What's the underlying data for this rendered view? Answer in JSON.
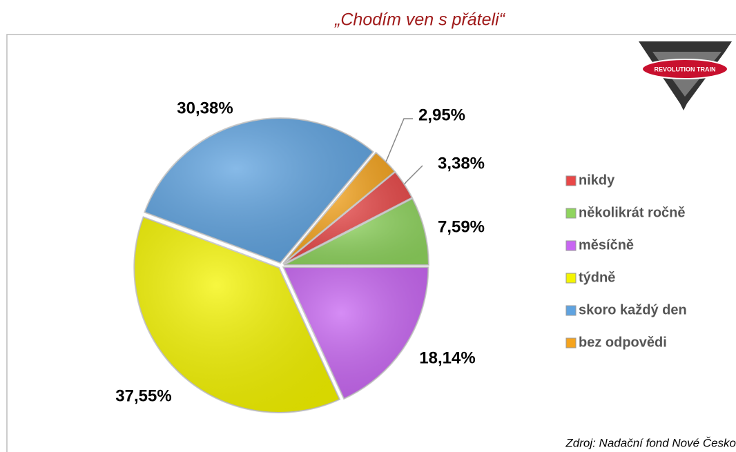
{
  "chart_data": {
    "type": "pie",
    "title": "„Chodím ven s přáteli“",
    "logo": "REVOLUTION TRAIN",
    "source": "Zdroj: Nadační fond Nové Česko",
    "categories": [
      "nikdy",
      "několikrát ročně",
      "měsíčně",
      "týdně",
      "skoro každý den",
      "bez odpovědi"
    ],
    "values": [
      3.38,
      7.59,
      18.14,
      37.55,
      30.38,
      2.95
    ],
    "value_labels": [
      "3,38%",
      "7,59%",
      "18,14%",
      "37,55%",
      "30,38%",
      "2,95%"
    ],
    "colors": [
      "#e84848",
      "#8fd45e",
      "#c866f2",
      "#f4f400",
      "#5fa3e0",
      "#f5a41e"
    ],
    "legend": "right"
  }
}
